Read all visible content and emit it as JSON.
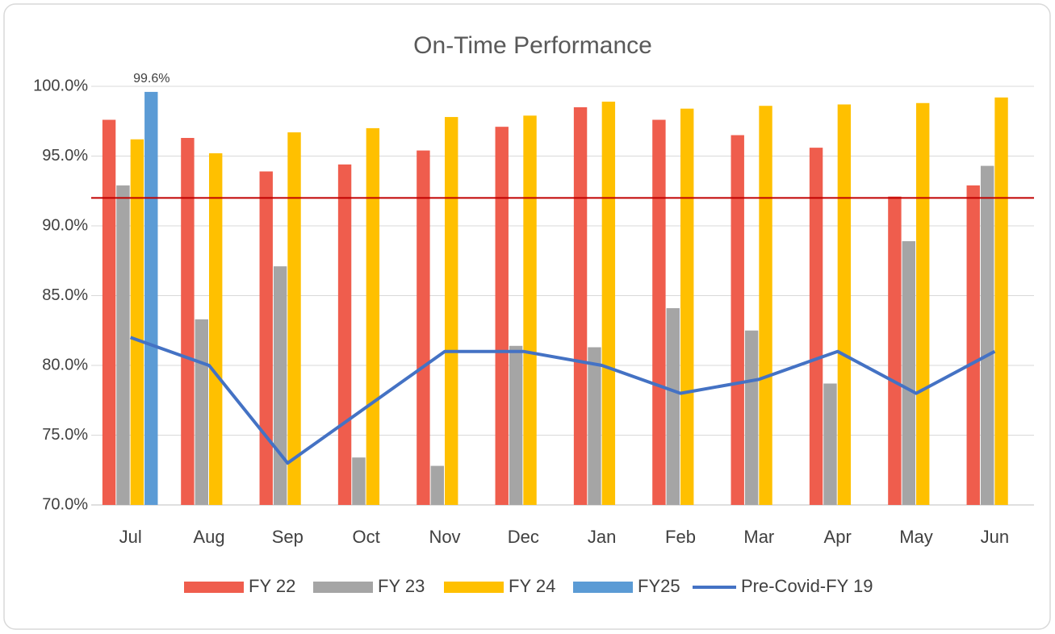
{
  "chart_data": {
    "type": "bar",
    "title": "On-Time Performance",
    "categories": [
      "Jul",
      "Aug",
      "Sep",
      "Oct",
      "Nov",
      "Dec",
      "Jan",
      "Feb",
      "Mar",
      "Apr",
      "May",
      "Jun"
    ],
    "series": [
      {
        "name": "FY 22",
        "color": "#ef5d4d",
        "values": [
          97.6,
          96.3,
          93.9,
          94.4,
          95.4,
          97.1,
          98.5,
          97.6,
          96.5,
          95.6,
          92.1,
          92.9
        ]
      },
      {
        "name": "FY 23",
        "color": "#a5a5a5",
        "values": [
          92.9,
          83.3,
          87.1,
          73.4,
          72.8,
          81.4,
          81.3,
          84.1,
          82.5,
          78.7,
          88.9,
          94.3
        ]
      },
      {
        "name": "FY 24",
        "color": "#ffc000",
        "values": [
          96.2,
          95.2,
          96.7,
          97.0,
          97.8,
          97.9,
          98.9,
          98.4,
          98.6,
          98.7,
          98.8,
          99.2
        ]
      },
      {
        "name": "FY25",
        "color": "#5b9bd5",
        "values": [
          99.6,
          null,
          null,
          null,
          null,
          null,
          null,
          null,
          null,
          null,
          null,
          null
        ],
        "value_labels": [
          "99.6%",
          null,
          null,
          null,
          null,
          null,
          null,
          null,
          null,
          null,
          null,
          null
        ]
      },
      {
        "name": "Pre-Covid-FY 19",
        "type": "line",
        "color": "#4472c4",
        "values": [
          82,
          80,
          73,
          77,
          81,
          81,
          80,
          78,
          79,
          81,
          78,
          81
        ]
      }
    ],
    "reference_line": {
      "value": 92,
      "color": "#c00000"
    },
    "ylim": [
      70,
      100
    ],
    "yticks": [
      {
        "value": 70,
        "label": "70.0%"
      },
      {
        "value": 75,
        "label": "75.0%"
      },
      {
        "value": 80,
        "label": "80.0%"
      },
      {
        "value": 85,
        "label": "85.0%"
      },
      {
        "value": 90,
        "label": "90.0%"
      },
      {
        "value": 95,
        "label": "95.0%"
      },
      {
        "value": 100,
        "label": "100.0%"
      }
    ],
    "grid": true,
    "legend": "bottom"
  }
}
